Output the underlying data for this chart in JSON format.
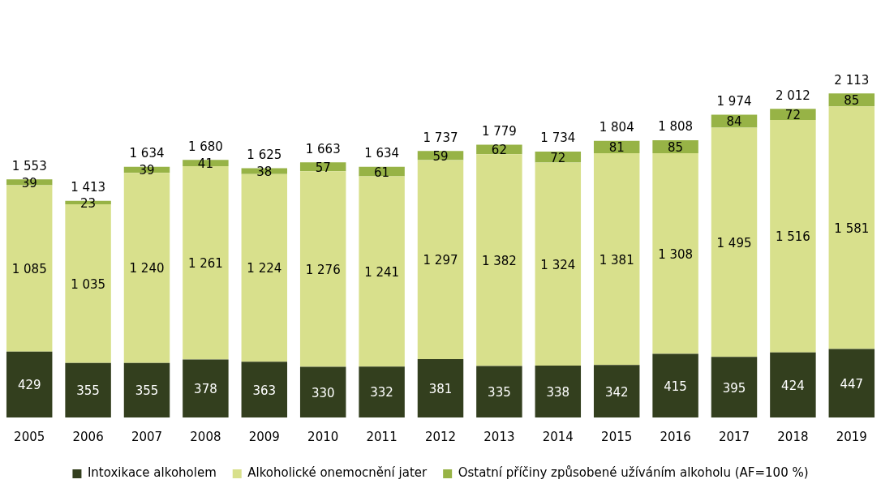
{
  "chart_data": {
    "type": "bar",
    "stacked": true,
    "legend": "bottom",
    "categories": [
      "2005",
      "2006",
      "2007",
      "2008",
      "2009",
      "2010",
      "2011",
      "2012",
      "2013",
      "2014",
      "2015",
      "2016",
      "2017",
      "2018",
      "2019"
    ],
    "series": [
      {
        "name": "Intoxikace alkoholem",
        "color": "#333f1e",
        "values": [
          429,
          355,
          355,
          378,
          363,
          330,
          332,
          381,
          335,
          338,
          342,
          415,
          395,
          424,
          447
        ],
        "value_labels": [
          "429",
          "355",
          "355",
          "378",
          "363",
          "330",
          "332",
          "381",
          "335",
          "338",
          "342",
          "415",
          "395",
          "424",
          "447"
        ]
      },
      {
        "name": "Alkoholické onemocnění jater",
        "color": "#d8e08c",
        "values": [
          1085,
          1035,
          1240,
          1261,
          1224,
          1276,
          1241,
          1297,
          1382,
          1324,
          1381,
          1308,
          1495,
          1516,
          1581
        ],
        "value_labels": [
          "1 085",
          "1 035",
          "1 240",
          "1 261",
          "1 224",
          "1 276",
          "1 241",
          "1 297",
          "1 382",
          "1 324",
          "1 381",
          "1 308",
          "1 495",
          "1 516",
          "1 581"
        ]
      },
      {
        "name": "Ostatní příčiny způsobené užíváním alkoholu (AF=100 %)",
        "color": "#97b346",
        "values": [
          39,
          23,
          39,
          41,
          38,
          57,
          61,
          59,
          62,
          72,
          81,
          85,
          84,
          72,
          85
        ],
        "value_labels": [
          "39",
          "23",
          "39",
          "41",
          "38",
          "57",
          "61",
          "59",
          "62",
          "72",
          "81",
          "85",
          "84",
          "72",
          "85"
        ]
      }
    ],
    "totals": [
      "1 553",
      "1 413",
      "1 634",
      "1 680",
      "1 625",
      "1 663",
      "1 634",
      "1 737",
      "1 779",
      "1 734",
      "1 804",
      "1 808",
      "1 974",
      "2 012",
      "2 113"
    ]
  }
}
